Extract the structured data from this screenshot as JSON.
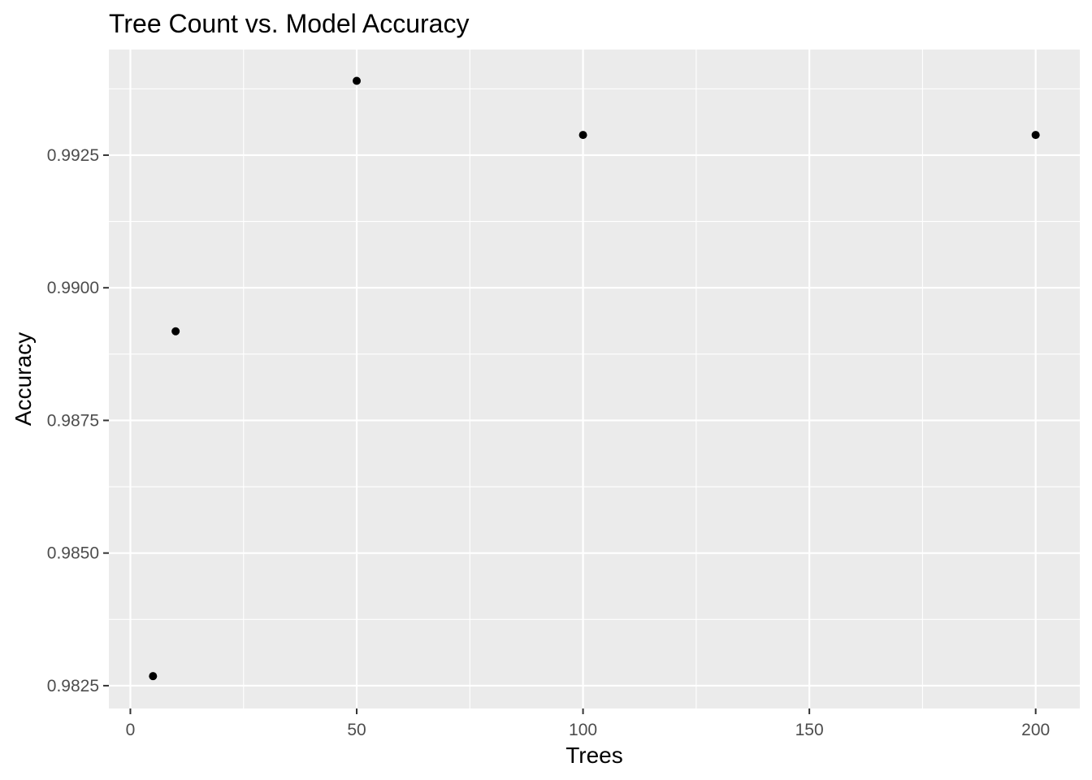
{
  "chart_data": {
    "type": "scatter",
    "title": "Tree Count vs. Model Accuracy",
    "xlabel": "Trees",
    "ylabel": "Accuracy",
    "x": [
      5,
      10,
      50,
      100,
      200
    ],
    "y": [
      0.98268,
      0.98918,
      0.9939,
      0.99288,
      0.99288
    ],
    "xlim": [
      -4.75,
      209.75
    ],
    "ylim": [
      0.98207,
      0.99449
    ],
    "x_ticks": [
      0,
      50,
      100,
      150,
      200
    ],
    "x_tick_labels": [
      "0",
      "50",
      "100",
      "150",
      "200"
    ],
    "x_minor_ticks": [
      25,
      75,
      125,
      175
    ],
    "y_ticks": [
      0.9825,
      0.985,
      0.9875,
      0.99,
      0.9925
    ],
    "y_tick_labels": [
      "0.9825",
      "0.9850",
      "0.9875",
      "0.9900",
      "0.9925"
    ],
    "y_minor_ticks": [
      0.98375,
      0.98625,
      0.98875,
      0.99125,
      0.99375
    ],
    "grid": true,
    "legend": "none",
    "colors": {
      "panel": "#ebebeb",
      "grid": "#ffffff",
      "point": "#000000",
      "tick_text": "#4d4d4d"
    }
  }
}
